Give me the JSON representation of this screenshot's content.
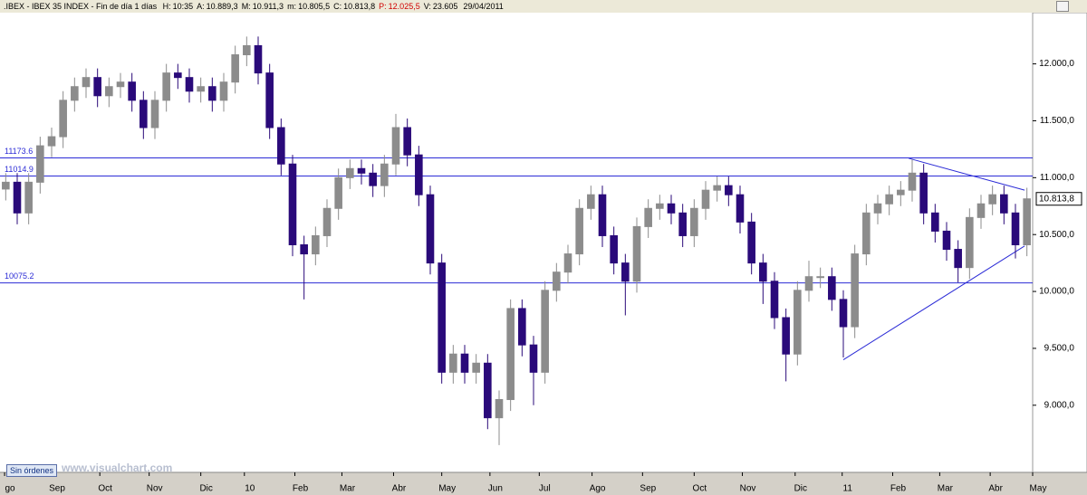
{
  "header": {
    "title": ".IBEX - IBEX 35 INDEX - Fin de día 1 días",
    "fields": [
      {
        "label": "H:",
        "value": "10:35"
      },
      {
        "label": "A:",
        "value": "10.889,3"
      },
      {
        "label": "M:",
        "value": "10.911,3"
      },
      {
        "label": "m:",
        "value": "10.805,5"
      },
      {
        "label": "C:",
        "value": "10.813,8"
      },
      {
        "label": "P:",
        "value": "12.025,5"
      },
      {
        "label": "V:",
        "value": "23.605"
      },
      {
        "label": "",
        "value": "29/04/2011"
      }
    ]
  },
  "footer": {
    "button": "Sin órdenes",
    "watermark": "www.visualchart.com"
  },
  "chart_data": {
    "type": "candlestick",
    "up_color": "#8c8c8c",
    "down_color": "#2a0a7a",
    "line_color": "#2b2bd6",
    "xlim": [
      0,
      90
    ],
    "ylim": [
      8410,
      12450
    ],
    "xticks": [
      {
        "value": 0.4,
        "label": "go"
      },
      {
        "value": 4.5,
        "label": "Sep"
      },
      {
        "value": 8.7,
        "label": "Oct"
      },
      {
        "value": 13,
        "label": "Nov"
      },
      {
        "value": 17.5,
        "label": "Dic"
      },
      {
        "value": 21.3,
        "label": "10"
      },
      {
        "value": 25.7,
        "label": "Feb"
      },
      {
        "value": 29.8,
        "label": "Mar"
      },
      {
        "value": 34.3,
        "label": "Abr"
      },
      {
        "value": 38.5,
        "label": "May"
      },
      {
        "value": 42.7,
        "label": "Jun"
      },
      {
        "value": 47,
        "label": "Jul"
      },
      {
        "value": 51.6,
        "label": "Ago"
      },
      {
        "value": 56,
        "label": "Sep"
      },
      {
        "value": 60.5,
        "label": "Oct"
      },
      {
        "value": 64.7,
        "label": "Nov"
      },
      {
        "value": 69.3,
        "label": "Dic"
      },
      {
        "value": 73.4,
        "label": "11"
      },
      {
        "value": 77.8,
        "label": "Feb"
      },
      {
        "value": 81.9,
        "label": "Mar"
      },
      {
        "value": 86.3,
        "label": "Abr"
      },
      {
        "value": 90,
        "label": "May"
      }
    ],
    "yticks": [
      {
        "value": 9000,
        "label": "9.000,0"
      },
      {
        "value": 9500,
        "label": "9.500,0"
      },
      {
        "value": 10000,
        "label": "10.000,0"
      },
      {
        "value": 10500,
        "label": "10.500,0"
      },
      {
        "value": 11000,
        "label": "11.000,0"
      },
      {
        "value": 11500,
        "label": "11.500,0"
      },
      {
        "value": 12000,
        "label": "12.000,0"
      }
    ],
    "levels": [
      11173.6,
      11014.9,
      10075.2
    ],
    "trendlines": [
      {
        "x": [
          79.2,
          89.3
        ],
        "y": [
          11170,
          10890
        ]
      },
      {
        "x": [
          73.5,
          89.3
        ],
        "y": [
          9400,
          10400
        ]
      }
    ],
    "last_price": {
      "value": 10813.8,
      "label": "10.813,8"
    },
    "open": [
      10900,
      10960,
      10690,
      10960,
      11280,
      11360,
      11680,
      11800,
      11880,
      11720,
      11800,
      11840,
      11680,
      11440,
      11680,
      11920,
      11880,
      11760,
      11800,
      11680,
      11840,
      12080,
      12160,
      11920,
      11440,
      11120,
      10410,
      10330,
      10490,
      10730,
      11000,
      11080,
      11040,
      10930,
      11120,
      11440,
      11200,
      10850,
      10250,
      9290,
      9450,
      9290,
      9370,
      8890,
      9050,
      9850,
      9530,
      9290,
      10010,
      10170,
      10330,
      10730,
      10850,
      10490,
      10250,
      10090,
      10570,
      10730,
      10770,
      10690,
      10490,
      10730,
      10890,
      10930,
      10850,
      10610,
      10250,
      10090,
      9770,
      9450,
      10010,
      10130,
      10130,
      9930,
      9690,
      10330,
      10690,
      10770,
      10850,
      10890,
      11040,
      10690,
      10530,
      10370,
      10210,
      10650,
      10770,
      10850,
      10690,
      10410
    ],
    "high": [
      11040,
      11040,
      11040,
      11360,
      11440,
      11760,
      11880,
      11960,
      11960,
      11880,
      11920,
      11920,
      11760,
      11760,
      12000,
      12000,
      11960,
      11880,
      11880,
      11920,
      12160,
      12240,
      12240,
      12000,
      11520,
      11200,
      10490,
      10570,
      10810,
      11080,
      11160,
      11160,
      11120,
      11200,
      11560,
      11520,
      11280,
      10930,
      10330,
      9530,
      9530,
      9450,
      9450,
      9130,
      9930,
      9930,
      9610,
      10090,
      10250,
      10410,
      10810,
      10930,
      10930,
      10570,
      10330,
      10650,
      10810,
      10850,
      10850,
      10770,
      10810,
      10970,
      11010,
      11010,
      10930,
      10690,
      10330,
      10170,
      9850,
      10090,
      10270,
      10210,
      10210,
      10010,
      10410,
      10770,
      10850,
      10930,
      10970,
      11160,
      11120,
      10770,
      10610,
      10450,
      10730,
      10850,
      10930,
      10930,
      10770,
      10911.3
    ],
    "low": [
      10800,
      10590,
      10590,
      10860,
      11180,
      11260,
      11580,
      11700,
      11620,
      11620,
      11700,
      11580,
      11340,
      11340,
      11580,
      11780,
      11660,
      11660,
      11580,
      11580,
      11740,
      11980,
      11820,
      11340,
      11020,
      10310,
      9930,
      10230,
      10390,
      10630,
      10900,
      10940,
      10830,
      10830,
      11020,
      11100,
      10750,
      10150,
      9190,
      9190,
      9190,
      9190,
      8790,
      8650,
      8950,
      9430,
      9000,
      9190,
      9910,
      10070,
      10230,
      10630,
      10390,
      10150,
      9790,
      9990,
      10470,
      10630,
      10590,
      10390,
      10390,
      10630,
      10790,
      10750,
      10510,
      10150,
      9890,
      9670,
      9210,
      9350,
      9910,
      10030,
      9830,
      9420,
      9590,
      10230,
      10590,
      10670,
      10750,
      10790,
      10590,
      10430,
      10270,
      10080,
      10110,
      10550,
      10670,
      10590,
      10290,
      10310
    ],
    "close": [
      10960,
      10690,
      10960,
      11280,
      11360,
      11680,
      11800,
      11880,
      11720,
      11800,
      11840,
      11680,
      11440,
      11680,
      11920,
      11880,
      11760,
      11800,
      11680,
      11840,
      12080,
      12160,
      11920,
      11440,
      11120,
      10410,
      10330,
      10490,
      10730,
      11000,
      11080,
      11040,
      10930,
      11120,
      11440,
      11200,
      10850,
      10250,
      9290,
      9450,
      9290,
      9370,
      8890,
      9050,
      9850,
      9530,
      9290,
      10010,
      10170,
      10330,
      10730,
      10850,
      10490,
      10250,
      10090,
      10570,
      10730,
      10770,
      10690,
      10490,
      10730,
      10890,
      10930,
      10850,
      10610,
      10250,
      10090,
      9770,
      9450,
      10010,
      10130,
      10130,
      9930,
      9690,
      10330,
      10690,
      10770,
      10850,
      10890,
      11040,
      10690,
      10530,
      10370,
      10210,
      10650,
      10770,
      10850,
      10690,
      10410,
      10813.8
    ]
  }
}
